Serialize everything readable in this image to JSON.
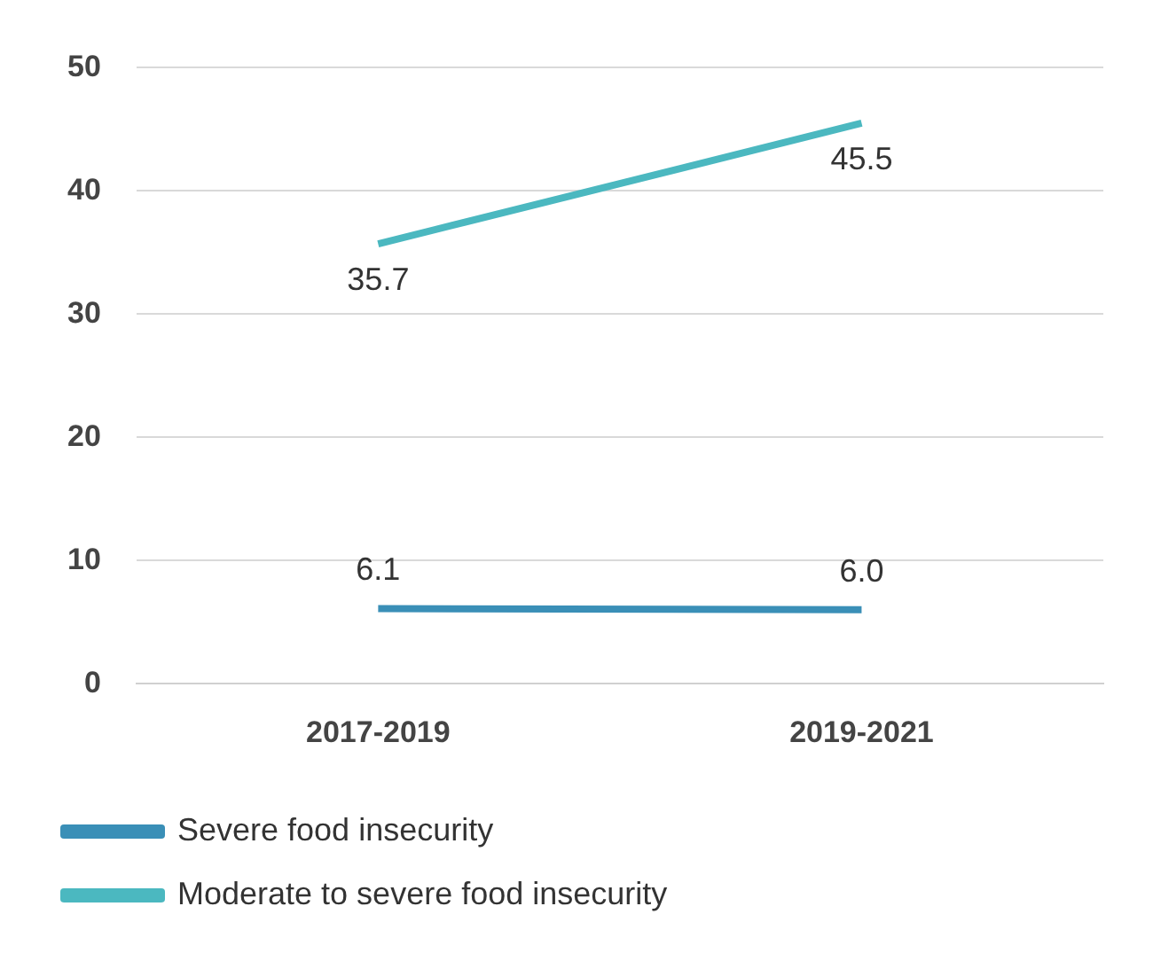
{
  "chart_data": {
    "type": "line",
    "categories": [
      "2017-2019",
      "2019-2021"
    ],
    "series": [
      {
        "name": "Severe food insecurity",
        "color": "#3a8fb7",
        "values": [
          6.1,
          6.0
        ],
        "value_labels": [
          "6.1",
          "6.0"
        ]
      },
      {
        "name": "Moderate to severe food insecurity",
        "color": "#4bb8c0",
        "values": [
          35.7,
          45.5
        ],
        "value_labels": [
          "35.7",
          "45.5"
        ]
      }
    ],
    "ylim": [
      0,
      50
    ],
    "yticks": [
      0,
      10,
      20,
      30,
      40,
      50
    ],
    "grid": "y",
    "legend": "bottom",
    "marker": "none",
    "line_style": "solid"
  }
}
